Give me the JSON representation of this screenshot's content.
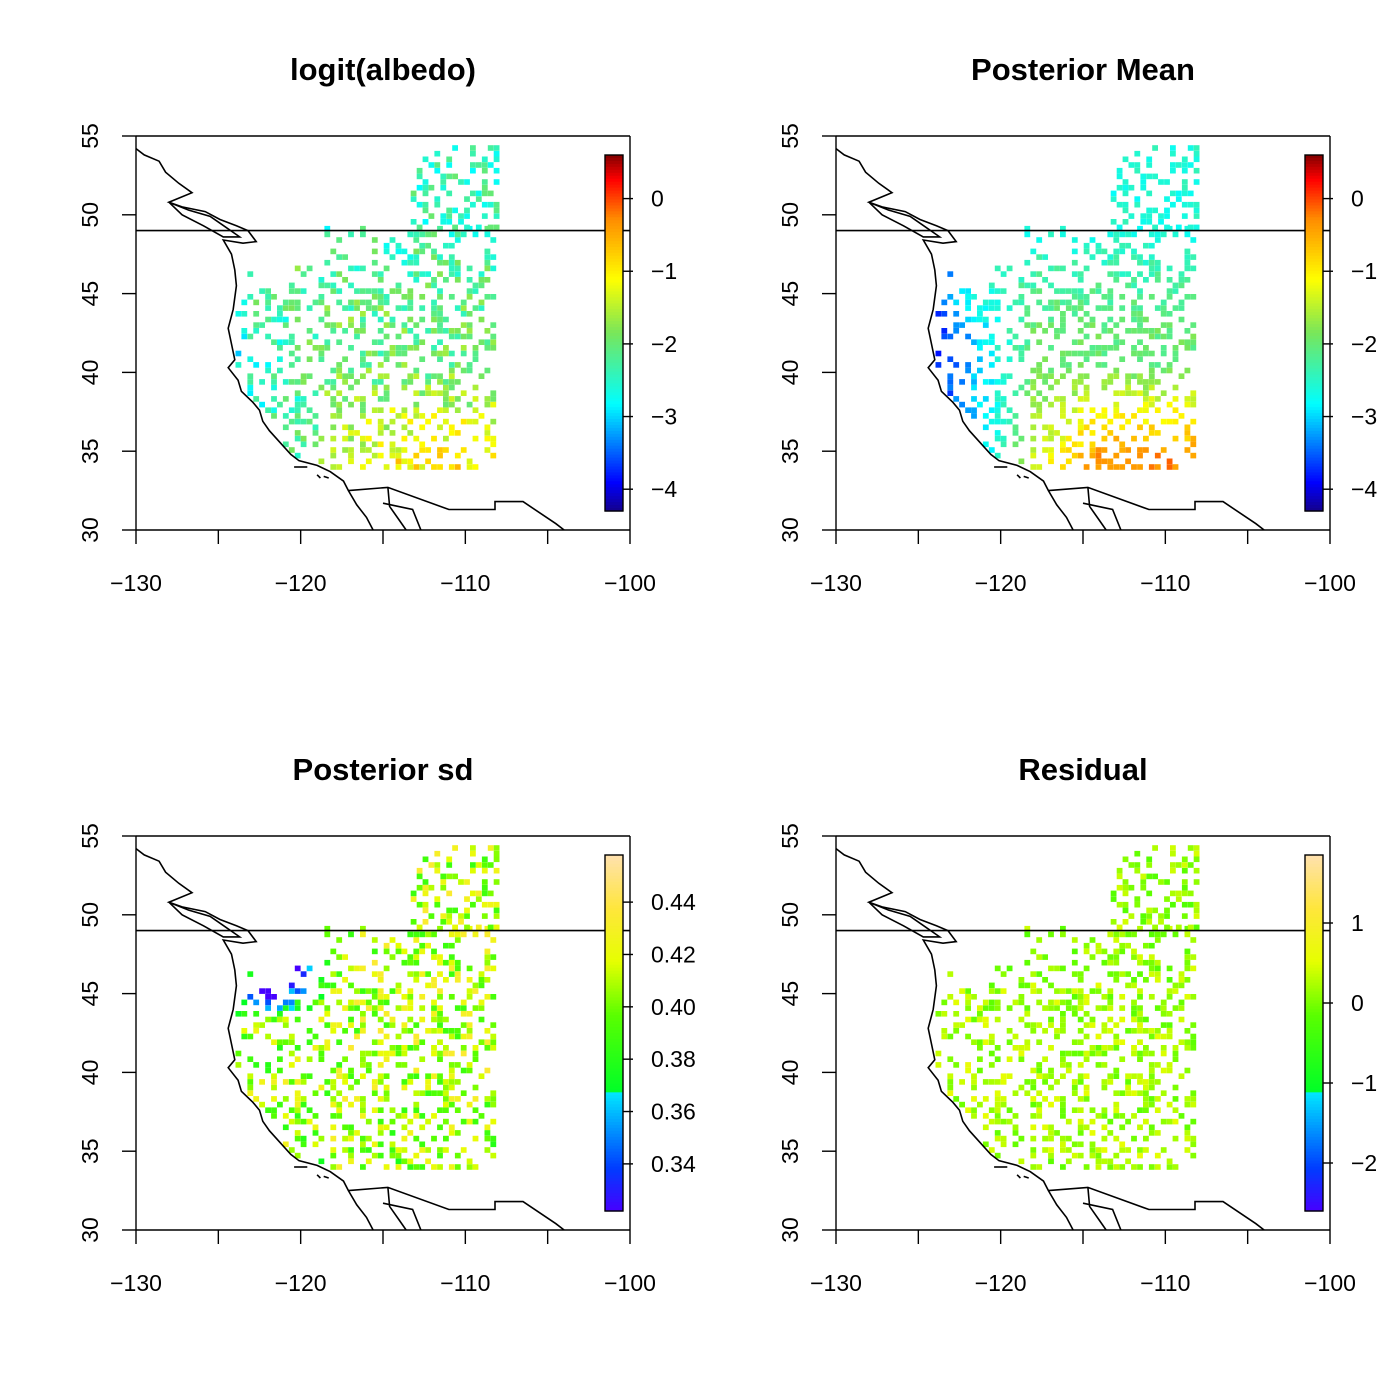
{
  "chart_data": [
    {
      "type": "heatmap",
      "title": "logit(albedo)",
      "xlim": [
        -130,
        -100
      ],
      "ylim": [
        30,
        55
      ],
      "x_ticks": [
        "−130",
        "−120",
        "−110",
        "−100"
      ],
      "y_ticks": [
        "30",
        "35",
        "40",
        "45",
        "50",
        "55"
      ],
      "colorbar": {
        "palette": "rainbow",
        "range": [
          -4.3,
          0.6
        ],
        "ticks": [
          0,
          -1,
          -2,
          -3,
          -4
        ],
        "tick_labels": [
          "0",
          "−1",
          "−2",
          "−3",
          "−4"
        ]
      },
      "mean_field": {
        "base": -2.0,
        "west": -2.7,
        "south": -1.0,
        "north": -2.4,
        "noise": 0.9
      },
      "seed": 11
    },
    {
      "type": "heatmap",
      "title": "Posterior Mean",
      "xlim": [
        -130,
        -100
      ],
      "ylim": [
        30,
        55
      ],
      "x_ticks": [
        "−130",
        "−120",
        "−110",
        "−100"
      ],
      "y_ticks": [
        "30",
        "35",
        "40",
        "45",
        "50",
        "55"
      ],
      "colorbar": {
        "palette": "rainbow",
        "range": [
          -4.3,
          0.6
        ],
        "ticks": [
          0,
          -1,
          -2,
          -3,
          -4
        ],
        "tick_labels": [
          "0",
          "−1",
          "−2",
          "−3",
          "−4"
        ]
      },
      "mean_field": {
        "base": -2.0,
        "west": -3.8,
        "south": -0.3,
        "north": -2.6,
        "noise": 0.4
      },
      "seed": 11
    },
    {
      "type": "heatmap",
      "title": "Posterior sd",
      "xlim": [
        -130,
        -100
      ],
      "ylim": [
        30,
        55
      ],
      "x_ticks": [
        "−130",
        "−120",
        "−110",
        "−100"
      ],
      "y_ticks": [
        "30",
        "35",
        "40",
        "45",
        "50",
        "55"
      ],
      "colorbar": {
        "palette": "topo",
        "range": [
          0.322,
          0.458
        ],
        "ticks": [
          0.34,
          0.36,
          0.38,
          0.4,
          0.42,
          0.44
        ],
        "tick_labels": [
          "0.34",
          "0.36",
          "0.38",
          "0.40",
          "0.42",
          "0.44"
        ]
      },
      "mean_field": {
        "base": 0.41,
        "west": 0.4,
        "south": 0.4,
        "north": 0.41,
        "noise": 0.05
      },
      "seed": 11
    },
    {
      "type": "heatmap",
      "title": "Residual",
      "xlim": [
        -130,
        -100
      ],
      "ylim": [
        30,
        55
      ],
      "x_ticks": [
        "−130",
        "−120",
        "−110",
        "−100"
      ],
      "y_ticks": [
        "30",
        "35",
        "40",
        "45",
        "50",
        "55"
      ],
      "colorbar": {
        "palette": "topo",
        "range": [
          -2.6,
          1.85
        ],
        "ticks": [
          1,
          0,
          -1,
          -2
        ],
        "tick_labels": [
          "1",
          "0",
          "−1",
          "−2"
        ]
      },
      "mean_field": {
        "base": 0.2,
        "west": 0.3,
        "south": 0.2,
        "north": 0.1,
        "noise": 0.7
      },
      "seed": 11
    }
  ]
}
